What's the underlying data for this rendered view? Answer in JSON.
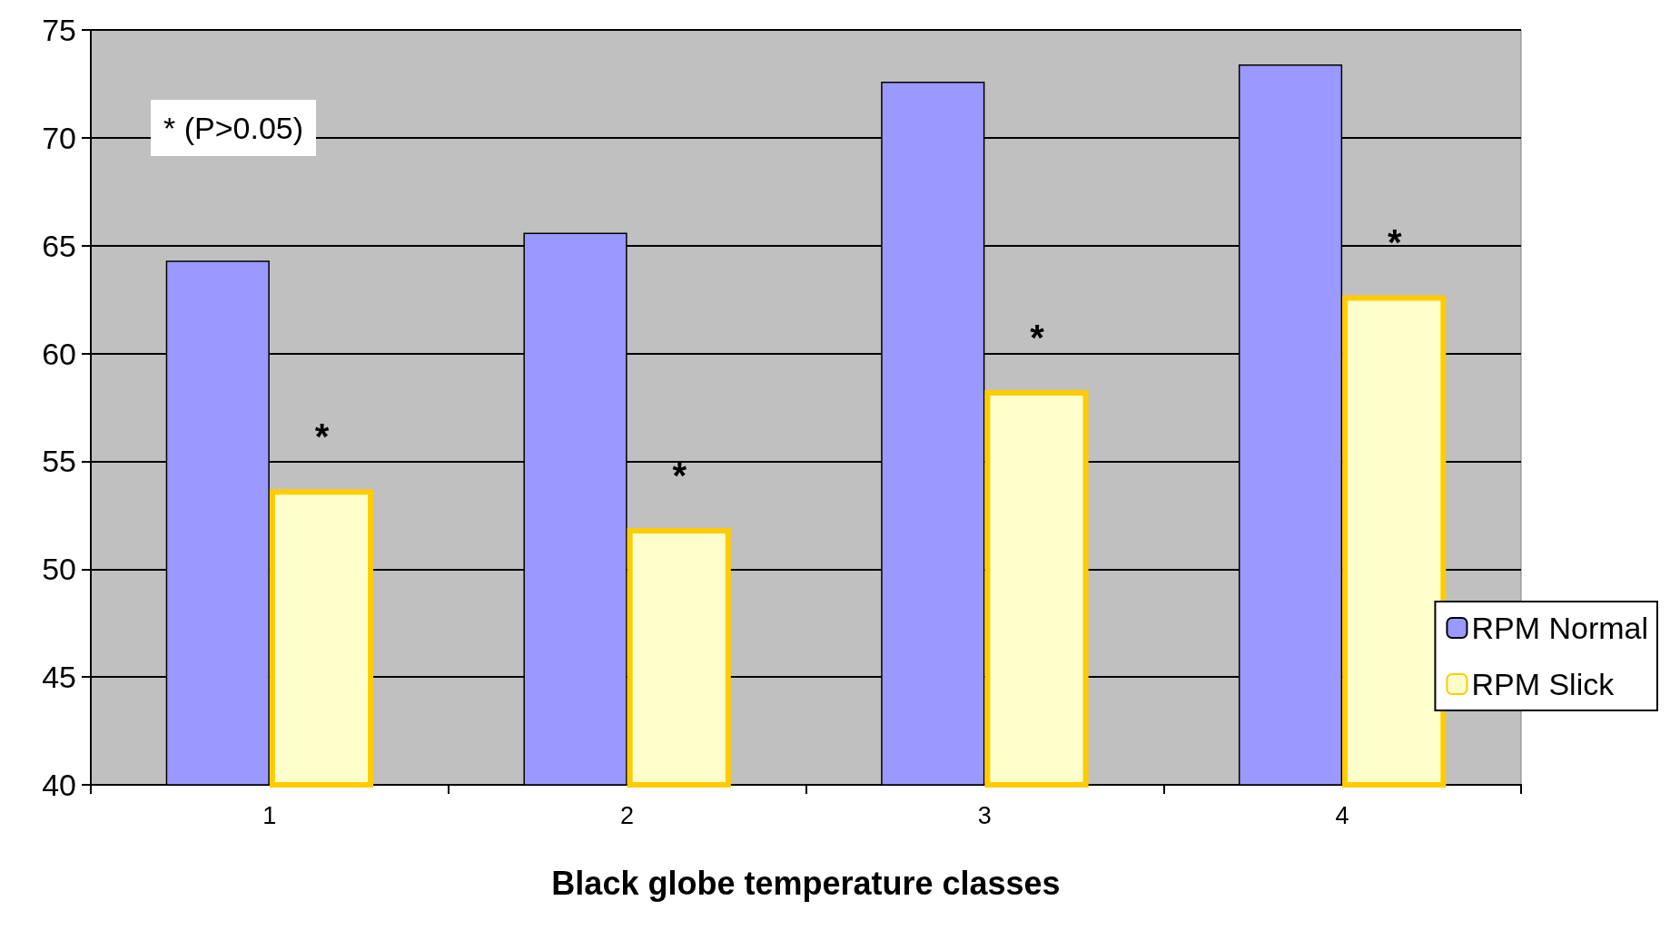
{
  "chart_data": {
    "type": "bar",
    "xlabel": "Black globe temperature classes",
    "categories": [
      "1",
      "2",
      "3",
      "4"
    ],
    "series": [
      {
        "name": "RPM Normal",
        "color": "#9999ff",
        "values": [
          64.3,
          65.6,
          72.6,
          73.4
        ]
      },
      {
        "name": "RPM Slick",
        "color": "#ffffcc",
        "values": [
          53.7,
          51.9,
          58.3,
          62.7
        ]
      }
    ],
    "ylim": [
      40,
      75
    ],
    "yticks": [
      40,
      45,
      50,
      55,
      60,
      65,
      70,
      75
    ],
    "grid": "y",
    "legend": "right",
    "annotations": [
      "* (P>0.05)",
      {
        "text": "*",
        "x": "1",
        "y": 55.3
      },
      {
        "text": "*",
        "x": "2",
        "y": 53.5
      },
      {
        "text": "*",
        "x": "3",
        "y": 59.9
      },
      {
        "text": "*",
        "x": "4",
        "y": 64.3
      }
    ]
  }
}
